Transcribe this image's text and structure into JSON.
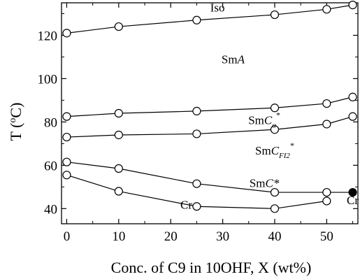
{
  "chart_data": {
    "type": "line",
    "title": "",
    "xlabel": "Conc. of C9 in 10OHF, X (wt%)",
    "ylabel": {
      "base": "T (",
      "sup": "o",
      "unit": "C)"
    },
    "xlim": [
      -1,
      56
    ],
    "ylim": [
      33,
      135
    ],
    "xticks": [
      0,
      10,
      20,
      30,
      40,
      50
    ],
    "yticks": [
      40,
      60,
      80,
      100,
      120
    ],
    "x": [
      0,
      10,
      25,
      40,
      50,
      55
    ],
    "series": [
      {
        "values": [
          121,
          124,
          127,
          129.5,
          132,
          134
        ]
      },
      {
        "values": [
          82.5,
          84,
          85,
          86.5,
          88.5,
          91.5
        ]
      },
      {
        "values": [
          73,
          74,
          74.5,
          76.5,
          79,
          82.5
        ]
      },
      {
        "values": [
          61.5,
          58.5,
          51.5,
          47.5,
          47.5,
          47.5
        ]
      },
      {
        "values": [
          55.5,
          48,
          41,
          40,
          43.5,
          null
        ]
      }
    ],
    "filled_point": {
      "x": 55,
      "y": 47.5
    },
    "phase_labels": [
      {
        "text": "Iso",
        "x": 29,
        "y": 131
      },
      {
        "text": "SmA",
        "main": "Sm",
        "italic": "A",
        "x": 32,
        "y": 107
      },
      {
        "text": "SmCα*",
        "main": "Sm",
        "italic": "C",
        "sub": "α",
        "sup": "*",
        "x": 38,
        "y": 79
      },
      {
        "text": "SmCFI2*",
        "main": "Sm",
        "italic": "C",
        "sub": "FI2",
        "sup": "*",
        "x": 40,
        "y": 65
      },
      {
        "text": "SmC*",
        "main": "Sm",
        "italic": "C*",
        "x": 38,
        "y": 50
      },
      {
        "text": "Cr",
        "x": 23,
        "y": 40
      },
      {
        "text": "Cr",
        "x": 55,
        "y": 42
      }
    ]
  }
}
